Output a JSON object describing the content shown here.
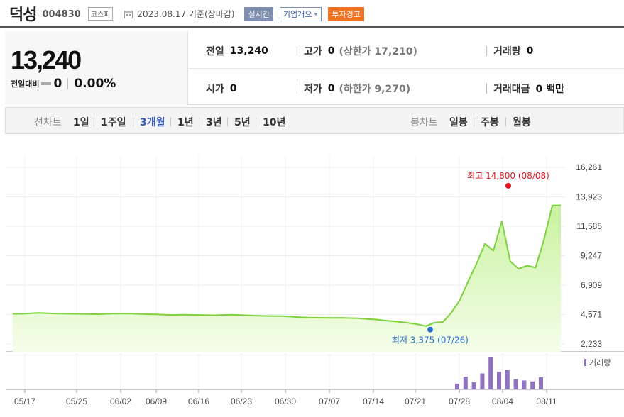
{
  "header": {
    "stock_name": "덕성",
    "stock_code": "004830",
    "market": "코스피",
    "date_text": "2023.08.17 기준(장마감)",
    "realtime_btn": "실시간",
    "corp_btn": "기업개요",
    "warning_btn": "투자경고"
  },
  "quote": {
    "price": "13,240",
    "change_label": "전일대비",
    "change_value": "0",
    "change_pct": "0.00%",
    "prev_close_label": "전일",
    "prev_close": "13,240",
    "high_label": "고가",
    "high": "0",
    "upper_limit": "(상한가 17,210)",
    "volume_label": "거래량",
    "volume": "0",
    "open_label": "시가",
    "open": "0",
    "low_label": "저가",
    "low": "0",
    "lower_limit": "(하한가 9,270)",
    "amount_label": "거래대금",
    "amount": "0 백만"
  },
  "toolbar": {
    "line_label": "선차트",
    "line_periods": [
      "1일",
      "1주일",
      "3개월",
      "1년",
      "3년",
      "5년",
      "10년"
    ],
    "active_period": "3개월",
    "candle_label": "봉차트",
    "candle_periods": [
      "일봉",
      "주봉",
      "월봉"
    ]
  },
  "chart_data": {
    "type": "area",
    "y_ticks": [
      "16,261",
      "13,923",
      "11,585",
      "9,247",
      "6,909",
      "4,571",
      "2,233"
    ],
    "ylim": [
      2233,
      16261
    ],
    "x_ticks": [
      "05/17",
      "05/25",
      "06/02",
      "06/09",
      "06/16",
      "06/23",
      "06/30",
      "07/07",
      "07/14",
      "07/21",
      "07/28",
      "08/04",
      "08/11"
    ],
    "series": [
      {
        "values": [
          4630,
          4630,
          4660,
          4700,
          4680,
          4650,
          4640,
          4630,
          4620,
          4610,
          4600,
          4620,
          4640,
          4650,
          4640,
          4620,
          4600,
          4580,
          4560,
          4540,
          4560,
          4550,
          4540,
          4520,
          4510,
          4540,
          4560,
          4530,
          4490,
          4470,
          4460,
          4450,
          4440,
          4400,
          4360,
          4330,
          4320,
          4310,
          4300,
          4310,
          4290,
          4270,
          4220,
          4180,
          4100,
          4050,
          3980,
          3900,
          3800,
          3650,
          3930,
          3980,
          4700,
          5700,
          7200,
          8600,
          10200,
          9650,
          12000,
          8800,
          8200,
          8450,
          8300,
          10500,
          13240,
          13240
        ],
        "color": "#7dd13d"
      }
    ],
    "annotations": {
      "high_text": "최고 14,800 (08/08)",
      "high_value": 14800,
      "low_text": "최저 3,375 (07/26)",
      "low_value": 3375
    },
    "volume": {
      "label": "거래량",
      "bars": [
        0.18,
        0.4,
        0.22,
        0.5,
        1.0,
        0.55,
        0.6,
        0.32,
        0.28,
        0.25,
        0.38
      ],
      "color": "#8f72c0"
    }
  }
}
